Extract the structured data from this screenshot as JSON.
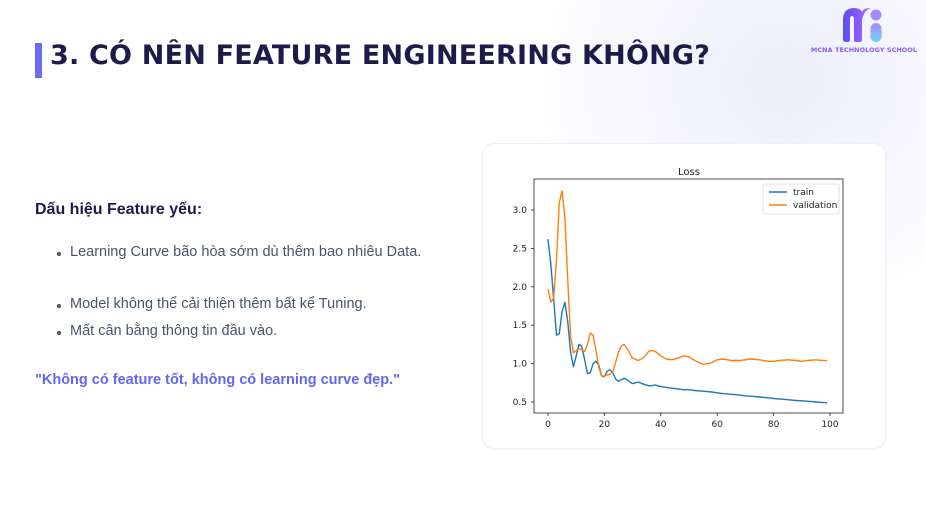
{
  "slide": {
    "title": "3. CÓ NÊN FEATURE ENGINEERING KHÔNG?",
    "accent_color": "#6b6cf0",
    "title_color": "#1e1b4b"
  },
  "logo": {
    "text": "MCNA TECHNOLOGY SCHOOL",
    "icon": "mcna-logo-icon"
  },
  "content": {
    "heading": "Dấu hiệu Feature yếu:",
    "bullets": [
      "Learning Curve bão hòa sớm dù thêm bao nhiêu Data.",
      "Model không thể cải thiện thêm bất kể Tuning.",
      "Mất cân bằng thông tin đầu vào."
    ],
    "quote": "\"Không có feature tốt, không có learning curve đẹp.\"",
    "quote_color": "#6366f1"
  },
  "chart_data": {
    "type": "line",
    "title": "Loss",
    "xlabel": "",
    "ylabel": "",
    "xlim": [
      -5,
      104
    ],
    "ylim": [
      0.35,
      3.4
    ],
    "xticks": [
      0,
      20,
      40,
      60,
      80,
      100
    ],
    "yticks": [
      0.5,
      1.0,
      1.5,
      2.0,
      2.5,
      3.0
    ],
    "ytick_labels": [
      "0.5",
      "1.0",
      "1.5",
      "2.0",
      "2.5",
      "3.0"
    ],
    "grid": false,
    "legend_position": "upper right",
    "x": [
      0,
      1,
      2,
      3,
      4,
      5,
      6,
      7,
      8,
      9,
      10,
      11,
      12,
      13,
      14,
      15,
      16,
      17,
      18,
      19,
      20,
      21,
      22,
      23,
      24,
      25,
      26,
      27,
      28,
      29,
      30,
      32,
      34,
      36,
      38,
      40,
      42,
      44,
      46,
      48,
      50,
      52,
      55,
      58,
      60,
      62,
      65,
      68,
      70,
      72,
      75,
      78,
      80,
      82,
      85,
      88,
      90,
      92,
      95,
      97,
      99
    ],
    "series": [
      {
        "name": "train",
        "color": "#1f77b4",
        "values": [
          2.62,
          2.3,
          1.85,
          1.37,
          1.39,
          1.68,
          1.8,
          1.55,
          1.15,
          0.96,
          1.1,
          1.25,
          1.22,
          1.05,
          0.87,
          0.88,
          1.0,
          1.03,
          0.98,
          0.84,
          0.83,
          0.9,
          0.92,
          0.88,
          0.8,
          0.77,
          0.79,
          0.81,
          0.79,
          0.76,
          0.74,
          0.76,
          0.73,
          0.71,
          0.72,
          0.7,
          0.69,
          0.68,
          0.67,
          0.66,
          0.66,
          0.65,
          0.64,
          0.63,
          0.62,
          0.61,
          0.6,
          0.59,
          0.58,
          0.575,
          0.565,
          0.555,
          0.545,
          0.54,
          0.53,
          0.52,
          0.515,
          0.51,
          0.5,
          0.495,
          0.49
        ]
      },
      {
        "name": "validation",
        "color": "#ff7f0e",
        "values": [
          1.97,
          1.8,
          1.85,
          2.35,
          3.1,
          3.25,
          2.9,
          2.1,
          1.35,
          1.14,
          1.17,
          1.19,
          1.18,
          1.16,
          1.25,
          1.4,
          1.37,
          1.18,
          0.95,
          0.84,
          0.84,
          0.85,
          0.86,
          0.9,
          1.02,
          1.15,
          1.23,
          1.25,
          1.2,
          1.13,
          1.07,
          1.04,
          1.08,
          1.17,
          1.16,
          1.1,
          1.06,
          1.05,
          1.07,
          1.1,
          1.09,
          1.04,
          0.99,
          1.01,
          1.05,
          1.06,
          1.04,
          1.04,
          1.05,
          1.06,
          1.05,
          1.03,
          1.03,
          1.04,
          1.05,
          1.04,
          1.03,
          1.04,
          1.05,
          1.04,
          1.04
        ]
      }
    ]
  }
}
